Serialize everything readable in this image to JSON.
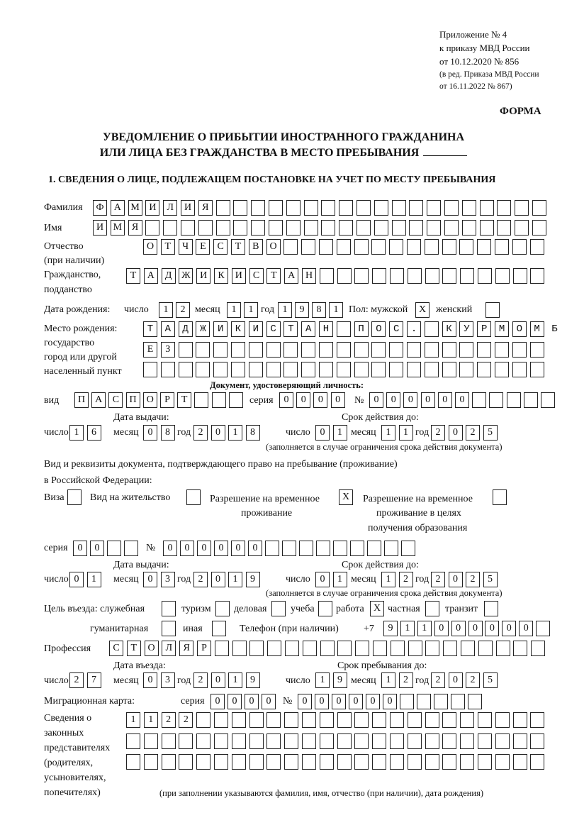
{
  "header": {
    "appendix": "Приложение № 4",
    "order": "к приказу МВД России",
    "order_date": "от 10.12.2020 № 856",
    "edition_1": "(в ред. Приказа МВД России",
    "edition_2": "от 16.11.2022 № 867)",
    "form_label": "ФОРМА"
  },
  "title": {
    "line1": "УВЕДОМЛЕНИЕ О ПРИБЫТИИ ИНОСТРАННОГО ГРАЖДАНИНА",
    "line2": "ИЛИ ЛИЦА БЕЗ ГРАЖДАНСТВА В МЕСТО ПРЕБЫВАНИЯ"
  },
  "section1": "1. СВЕДЕНИЯ О ЛИЦЕ, ПОДЛЕЖАЩЕМ ПОСТАНОВКЕ НА УЧЕТ ПО МЕСТУ ПРЕБЫВАНИЯ",
  "labels": {
    "surname": "Фамилия",
    "name": "Имя",
    "patronymic": "Отчество",
    "if_any": "(при наличии)",
    "citizenship": "Гражданство,",
    "nationality": "подданство",
    "birth_date": "Дата рождения:",
    "day": "число",
    "month": "месяц",
    "year": "год",
    "sex_male": "Пол: мужской",
    "sex_female": "женский",
    "birth_place": "Место рождения:",
    "state": "государство",
    "city_1": "город или другой",
    "city_2": "населенный пункт",
    "id_doc": "Документ, удостоверяющий личность:",
    "kind": "вид",
    "series": "серия",
    "number": "№",
    "issue_date": "Дата выдачи:",
    "valid_until": "Срок действия до:",
    "validity_note": "(заполняется в случае ограничения срока действия документа)",
    "stay_doc_1": "Вид и реквизиты документа, подтверждающего право на пребывание (проживание)",
    "stay_doc_2": "в Российской Федерации:",
    "visa": "Виза",
    "residence": "Вид на жительство",
    "temp_permit_1": "Разрешение на временное",
    "temp_permit_2": "проживание",
    "edu_permit_1": "Разрешение на временное",
    "edu_permit_2": "проживание в целях",
    "edu_permit_3": "получения образования",
    "purpose": "Цель въезда: служебная",
    "tourism": "туризм",
    "business": "деловая",
    "study": "учеба",
    "work": "работа",
    "private": "частная",
    "transit": "транзит",
    "humanitarian": "гуманитарная",
    "other": "иная",
    "phone": "Телефон (при наличии)",
    "phone_prefix": "+7",
    "profession": "Профессия",
    "entry_date": "Дата въезда:",
    "stay_until": "Срок пребывания до:",
    "migration_card": "Миграционная карта:",
    "guardians_1": "Сведения о",
    "guardians_2": "законных",
    "guardians_3": "представителях",
    "guardians_4": "(родителях,",
    "guardians_5": "усыновителях,",
    "guardians_6": "попечителях)",
    "guardians_note": "(при заполнении указываются фамилия, имя, отчество (при наличии), дата рождения)"
  },
  "fields": {
    "surname": "ФАМИЛИЯ",
    "name": "ИМЯ",
    "patronymic": "ОТЧЕСТВО",
    "citizenship": "ТАДЖИКИСТАН",
    "birth_day": "12",
    "birth_month": "11",
    "birth_year": "1981",
    "sex_male": true,
    "sex_female": false,
    "birth_place_1": "ТАДЖИКИСТАН ПОС. КУРМОМБ",
    "birth_place_2": "ЕЗ",
    "birth_place_3": "",
    "id_kind": "ПАСПОРТ",
    "id_series": "0000",
    "id_number": "000000",
    "id_issue_day": "16",
    "id_issue_month": "08",
    "id_issue_year": "2018",
    "id_valid_day": "01",
    "id_valid_month": "11",
    "id_valid_year": "2025",
    "visa": false,
    "residence": false,
    "temp_permit": true,
    "edu_permit": false,
    "stay_series": "00",
    "stay_number": "000000",
    "stay_issue_day": "01",
    "stay_issue_month": "03",
    "stay_issue_year": "2019",
    "stay_valid_day": "01",
    "stay_valid_month": "12",
    "stay_valid_year": "2025",
    "purpose_official": false,
    "purpose_tourism": false,
    "purpose_business": false,
    "purpose_study": false,
    "purpose_work": true,
    "purpose_private": false,
    "purpose_transit": false,
    "purpose_humanitarian": false,
    "purpose_other": false,
    "phone": "911000000",
    "profession": "СТОЛЯР",
    "entry_day": "27",
    "entry_month": "03",
    "entry_year": "2019",
    "stay_until_day": "19",
    "stay_until_month": "12",
    "stay_until_year": "2025",
    "migration_series": "0000",
    "migration_number": "000000",
    "guardians_1": "1122",
    "guardians_2": "",
    "guardians_3": ""
  }
}
